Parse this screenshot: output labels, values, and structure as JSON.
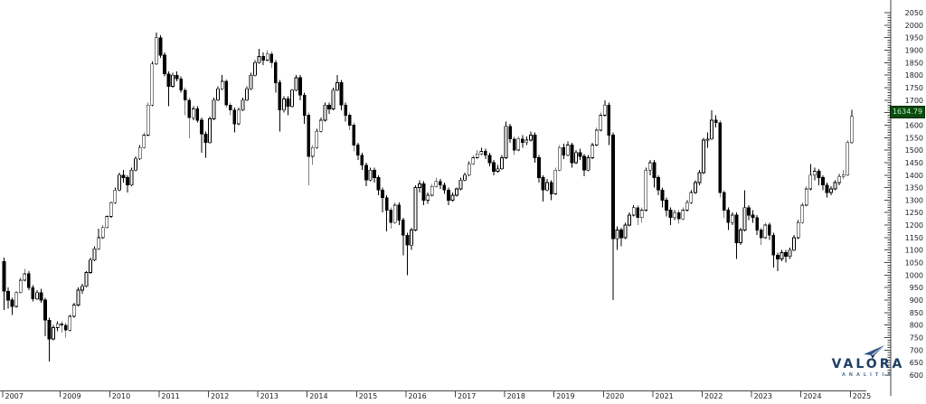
{
  "chart": {
    "last_price": "1634.79",
    "badge_bg_color": "#0c4a10",
    "badge_text_color": "#b9f2b9",
    "up_candle_color": "#ffffff",
    "down_candle_color": "#000000",
    "axis_color": "#444444",
    "label_color": "#1a1a1a"
  },
  "chart_data": {
    "type": "candlestick",
    "interval": "monthly",
    "start": "2007-11",
    "end": "2025-01",
    "grid": false,
    "legend": false,
    "y_axis": {
      "side": "right",
      "min": 600,
      "max": 2050,
      "tick_step": 50,
      "minor_tick_step": 10,
      "tick_labels": [
        "2050",
        "2000",
        "1950",
        "1900",
        "1850",
        "1800",
        "1750",
        "1700",
        "1650",
        "1600",
        "1550",
        "1500",
        "1450",
        "1400",
        "1350",
        "1300",
        "1250",
        "1200",
        "1150",
        "1100",
        "1050",
        "1000",
        "950",
        "900",
        "850",
        "800",
        "750",
        "700",
        "650",
        "600"
      ]
    },
    "x_axis": {
      "side": "bottom",
      "year_labels": [
        "2007",
        "2009",
        "2010",
        "2011",
        "2012",
        "2013",
        "2014",
        "2015",
        "2016",
        "2017",
        "2018",
        "2019",
        "2020",
        "2021",
        "2022",
        "2023",
        "2024",
        "2025"
      ]
    },
    "last_price": 1634.79,
    "ohlc": [
      [
        1055,
        1070,
        860,
        935
      ],
      [
        935,
        950,
        865,
        900
      ],
      [
        900,
        910,
        840,
        875
      ],
      [
        875,
        935,
        870,
        930
      ],
      [
        930,
        990,
        925,
        980
      ],
      [
        980,
        1025,
        975,
        1005
      ],
      [
        1005,
        1015,
        940,
        950
      ],
      [
        950,
        960,
        895,
        905
      ],
      [
        905,
        940,
        900,
        930
      ],
      [
        930,
        945,
        890,
        900
      ],
      [
        900,
        910,
        755,
        820
      ],
      [
        820,
        830,
        655,
        745
      ],
      [
        745,
        800,
        740,
        790
      ],
      [
        790,
        815,
        775,
        805
      ],
      [
        805,
        815,
        770,
        800
      ],
      [
        800,
        810,
        750,
        780
      ],
      [
        780,
        840,
        775,
        835
      ],
      [
        835,
        890,
        830,
        880
      ],
      [
        880,
        950,
        875,
        940
      ],
      [
        940,
        965,
        925,
        955
      ],
      [
        955,
        1015,
        950,
        1010
      ],
      [
        1010,
        1070,
        1005,
        1060
      ],
      [
        1060,
        1115,
        1055,
        1105
      ],
      [
        1105,
        1185,
        1100,
        1150
      ],
      [
        1150,
        1200,
        1145,
        1190
      ],
      [
        1190,
        1240,
        1185,
        1235
      ],
      [
        1235,
        1295,
        1230,
        1290
      ],
      [
        1290,
        1350,
        1285,
        1340
      ],
      [
        1340,
        1410,
        1335,
        1400
      ],
      [
        1400,
        1420,
        1370,
        1390
      ],
      [
        1390,
        1400,
        1330,
        1360
      ],
      [
        1360,
        1430,
        1355,
        1420
      ],
      [
        1420,
        1475,
        1415,
        1465
      ],
      [
        1465,
        1520,
        1460,
        1510
      ],
      [
        1510,
        1570,
        1505,
        1560
      ],
      [
        1560,
        1690,
        1555,
        1680
      ],
      [
        1680,
        1855,
        1675,
        1845
      ],
      [
        1845,
        1970,
        1840,
        1950
      ],
      [
        1950,
        1960,
        1870,
        1880
      ],
      [
        1880,
        1890,
        1795,
        1805
      ],
      [
        1805,
        1815,
        1675,
        1755
      ],
      [
        1755,
        1810,
        1750,
        1800
      ],
      [
        1800,
        1815,
        1775,
        1785
      ],
      [
        1785,
        1795,
        1730,
        1740
      ],
      [
        1740,
        1750,
        1640,
        1700
      ],
      [
        1700,
        1710,
        1548,
        1630
      ],
      [
        1630,
        1675,
        1620,
        1665
      ],
      [
        1665,
        1675,
        1610,
        1620
      ],
      [
        1620,
        1630,
        1490,
        1565
      ],
      [
        1565,
        1575,
        1470,
        1530
      ],
      [
        1530,
        1635,
        1525,
        1625
      ],
      [
        1625,
        1710,
        1620,
        1700
      ],
      [
        1700,
        1755,
        1695,
        1745
      ],
      [
        1745,
        1800,
        1740,
        1775
      ],
      [
        1775,
        1785,
        1670,
        1680
      ],
      [
        1680,
        1690,
        1640,
        1660
      ],
      [
        1660,
        1670,
        1570,
        1605
      ],
      [
        1605,
        1670,
        1600,
        1660
      ],
      [
        1660,
        1710,
        1655,
        1700
      ],
      [
        1700,
        1755,
        1695,
        1745
      ],
      [
        1745,
        1810,
        1740,
        1800
      ],
      [
        1800,
        1860,
        1795,
        1850
      ],
      [
        1850,
        1905,
        1845,
        1875
      ],
      [
        1875,
        1890,
        1840,
        1860
      ],
      [
        1860,
        1900,
        1855,
        1885
      ],
      [
        1885,
        1895,
        1830,
        1850
      ],
      [
        1850,
        1860,
        1730,
        1770
      ],
      [
        1770,
        1780,
        1575,
        1660
      ],
      [
        1660,
        1715,
        1650,
        1705
      ],
      [
        1705,
        1715,
        1640,
        1675
      ],
      [
        1675,
        1745,
        1670,
        1740
      ],
      [
        1740,
        1800,
        1735,
        1790
      ],
      [
        1790,
        1800,
        1700,
        1720
      ],
      [
        1720,
        1730,
        1605,
        1640
      ],
      [
        1640,
        1650,
        1360,
        1475
      ],
      [
        1475,
        1520,
        1440,
        1510
      ],
      [
        1510,
        1585,
        1505,
        1575
      ],
      [
        1575,
        1630,
        1570,
        1620
      ],
      [
        1620,
        1690,
        1615,
        1680
      ],
      [
        1680,
        1690,
        1645,
        1665
      ],
      [
        1665,
        1750,
        1660,
        1740
      ],
      [
        1740,
        1800,
        1735,
        1770
      ],
      [
        1770,
        1780,
        1660,
        1680
      ],
      [
        1680,
        1690,
        1615,
        1640
      ],
      [
        1640,
        1650,
        1580,
        1600
      ],
      [
        1600,
        1610,
        1495,
        1520
      ],
      [
        1520,
        1530,
        1460,
        1480
      ],
      [
        1480,
        1490,
        1420,
        1440
      ],
      [
        1440,
        1450,
        1355,
        1380
      ],
      [
        1380,
        1430,
        1375,
        1420
      ],
      [
        1420,
        1430,
        1370,
        1390
      ],
      [
        1390,
        1400,
        1320,
        1340
      ],
      [
        1340,
        1350,
        1250,
        1310
      ],
      [
        1310,
        1320,
        1175,
        1260
      ],
      [
        1260,
        1270,
        1185,
        1210
      ],
      [
        1210,
        1290,
        1205,
        1280
      ],
      [
        1280,
        1290,
        1200,
        1220
      ],
      [
        1220,
        1230,
        1080,
        1160
      ],
      [
        1160,
        1170,
        1000,
        1120
      ],
      [
        1120,
        1190,
        1100,
        1180
      ],
      [
        1180,
        1360,
        1175,
        1350
      ],
      [
        1350,
        1380,
        1330,
        1365
      ],
      [
        1365,
        1375,
        1280,
        1300
      ],
      [
        1300,
        1330,
        1285,
        1320
      ],
      [
        1320,
        1365,
        1315,
        1355
      ],
      [
        1355,
        1390,
        1350,
        1375
      ],
      [
        1375,
        1385,
        1345,
        1360
      ],
      [
        1360,
        1370,
        1325,
        1340
      ],
      [
        1340,
        1350,
        1280,
        1300
      ],
      [
        1300,
        1330,
        1295,
        1320
      ],
      [
        1320,
        1350,
        1315,
        1345
      ],
      [
        1345,
        1390,
        1340,
        1380
      ],
      [
        1380,
        1410,
        1375,
        1400
      ],
      [
        1400,
        1455,
        1395,
        1445
      ],
      [
        1445,
        1480,
        1440,
        1470
      ],
      [
        1470,
        1500,
        1465,
        1485
      ],
      [
        1485,
        1510,
        1480,
        1495
      ],
      [
        1495,
        1505,
        1465,
        1480
      ],
      [
        1480,
        1490,
        1435,
        1450
      ],
      [
        1450,
        1460,
        1400,
        1415
      ],
      [
        1415,
        1440,
        1410,
        1425
      ],
      [
        1425,
        1480,
        1420,
        1470
      ],
      [
        1470,
        1615,
        1465,
        1595
      ],
      [
        1595,
        1605,
        1530,
        1545
      ],
      [
        1545,
        1555,
        1480,
        1500
      ],
      [
        1500,
        1555,
        1495,
        1545
      ],
      [
        1545,
        1560,
        1510,
        1530
      ],
      [
        1530,
        1555,
        1520,
        1540
      ],
      [
        1540,
        1575,
        1535,
        1560
      ],
      [
        1560,
        1570,
        1450,
        1470
      ],
      [
        1470,
        1480,
        1370,
        1390
      ],
      [
        1390,
        1400,
        1295,
        1340
      ],
      [
        1340,
        1385,
        1335,
        1370
      ],
      [
        1370,
        1380,
        1300,
        1325
      ],
      [
        1325,
        1430,
        1320,
        1420
      ],
      [
        1420,
        1520,
        1415,
        1510
      ],
      [
        1510,
        1525,
        1465,
        1480
      ],
      [
        1480,
        1535,
        1475,
        1520
      ],
      [
        1520,
        1530,
        1430,
        1450
      ],
      [
        1450,
        1500,
        1445,
        1490
      ],
      [
        1490,
        1505,
        1460,
        1475
      ],
      [
        1475,
        1485,
        1395,
        1420
      ],
      [
        1420,
        1480,
        1415,
        1470
      ],
      [
        1470,
        1530,
        1465,
        1520
      ],
      [
        1520,
        1590,
        1515,
        1580
      ],
      [
        1580,
        1650,
        1575,
        1640
      ],
      [
        1640,
        1700,
        1635,
        1680
      ],
      [
        1680,
        1690,
        1520,
        1560
      ],
      [
        1560,
        1570,
        900,
        1145
      ],
      [
        1145,
        1195,
        1100,
        1180
      ],
      [
        1180,
        1190,
        1115,
        1150
      ],
      [
        1150,
        1210,
        1145,
        1200
      ],
      [
        1200,
        1250,
        1195,
        1240
      ],
      [
        1240,
        1280,
        1235,
        1270
      ],
      [
        1270,
        1280,
        1200,
        1230
      ],
      [
        1230,
        1270,
        1210,
        1260
      ],
      [
        1260,
        1430,
        1255,
        1420
      ],
      [
        1420,
        1460,
        1400,
        1450
      ],
      [
        1450,
        1460,
        1350,
        1390
      ],
      [
        1390,
        1400,
        1320,
        1340
      ],
      [
        1340,
        1350,
        1270,
        1300
      ],
      [
        1300,
        1310,
        1235,
        1260
      ],
      [
        1260,
        1270,
        1200,
        1230
      ],
      [
        1230,
        1260,
        1220,
        1250
      ],
      [
        1250,
        1260,
        1205,
        1225
      ],
      [
        1225,
        1270,
        1220,
        1260
      ],
      [
        1260,
        1300,
        1255,
        1290
      ],
      [
        1290,
        1340,
        1285,
        1330
      ],
      [
        1330,
        1380,
        1325,
        1370
      ],
      [
        1370,
        1420,
        1360,
        1410
      ],
      [
        1410,
        1550,
        1405,
        1540
      ],
      [
        1540,
        1570,
        1510,
        1545
      ],
      [
        1545,
        1660,
        1540,
        1620
      ],
      [
        1620,
        1640,
        1590,
        1610
      ],
      [
        1610,
        1620,
        1310,
        1330
      ],
      [
        1330,
        1340,
        1230,
        1260
      ],
      [
        1260,
        1270,
        1180,
        1210
      ],
      [
        1210,
        1250,
        1200,
        1240
      ],
      [
        1240,
        1250,
        1065,
        1130
      ],
      [
        1130,
        1190,
        1120,
        1180
      ],
      [
        1180,
        1340,
        1175,
        1270
      ],
      [
        1270,
        1280,
        1220,
        1240
      ],
      [
        1240,
        1260,
        1210,
        1230
      ],
      [
        1230,
        1240,
        1160,
        1180
      ],
      [
        1180,
        1190,
        1120,
        1150
      ],
      [
        1150,
        1210,
        1145,
        1200
      ],
      [
        1200,
        1210,
        1140,
        1160
      ],
      [
        1160,
        1170,
        1030,
        1080
      ],
      [
        1080,
        1090,
        1016,
        1065
      ],
      [
        1065,
        1100,
        1055,
        1090
      ],
      [
        1090,
        1100,
        1050,
        1075
      ],
      [
        1075,
        1110,
        1065,
        1100
      ],
      [
        1100,
        1160,
        1095,
        1150
      ],
      [
        1150,
        1220,
        1145,
        1210
      ],
      [
        1210,
        1290,
        1205,
        1280
      ],
      [
        1280,
        1355,
        1275,
        1345
      ],
      [
        1345,
        1445,
        1340,
        1400
      ],
      [
        1400,
        1430,
        1380,
        1415
      ],
      [
        1415,
        1425,
        1360,
        1390
      ],
      [
        1390,
        1400,
        1340,
        1360
      ],
      [
        1360,
        1370,
        1310,
        1330
      ],
      [
        1330,
        1355,
        1320,
        1345
      ],
      [
        1345,
        1380,
        1340,
        1370
      ],
      [
        1370,
        1405,
        1360,
        1395
      ],
      [
        1395,
        1420,
        1385,
        1400
      ],
      [
        1400,
        1540,
        1395,
        1530
      ],
      [
        1530,
        1662,
        1525,
        1635
      ]
    ]
  },
  "logo": {
    "name": "VALORA",
    "subtitle": "ANALITIX",
    "brand_color": "#1d3f66",
    "subtitle_color": "#56749a"
  }
}
